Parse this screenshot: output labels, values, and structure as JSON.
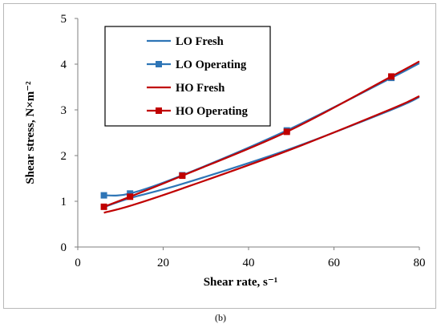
{
  "chart_data": {
    "type": "line",
    "xlabel": "Shear rate, s⁻¹",
    "ylabel": "Shear stress, N×m⁻²",
    "xlim": [
      0,
      80
    ],
    "ylim": [
      0,
      5
    ],
    "x_ticks": [
      0,
      20,
      40,
      60,
      80
    ],
    "y_ticks": [
      0,
      1,
      2,
      3,
      4,
      5
    ],
    "grid": false,
    "legend_position": "top-left",
    "series": [
      {
        "name": "LO Fresh",
        "color": "#2e75b6",
        "marker": "none",
        "x": [
          6.12,
          12.24,
          24.48,
          48.96,
          73.44,
          80
        ],
        "y": [
          0.87,
          1.07,
          1.38,
          2.12,
          3.0,
          3.28
        ]
      },
      {
        "name": "LO Operating",
        "color": "#2e75b6",
        "marker": "square",
        "x": [
          6.12,
          12.24,
          24.48,
          48.96,
          73.44,
          80
        ],
        "y": [
          1.13,
          1.17,
          1.57,
          2.55,
          3.7,
          4.02
        ]
      },
      {
        "name": "HO Fresh",
        "color": "#c00000",
        "marker": "none",
        "x": [
          6.12,
          12.24,
          24.48,
          48.96,
          73.44,
          80
        ],
        "y": [
          0.75,
          0.9,
          1.28,
          2.1,
          3.02,
          3.3
        ]
      },
      {
        "name": "HO Operating",
        "color": "#c00000",
        "marker": "square",
        "x": [
          6.12,
          12.24,
          24.48,
          48.96,
          73.44,
          80
        ],
        "y": [
          0.88,
          1.1,
          1.56,
          2.52,
          3.73,
          4.06
        ]
      }
    ],
    "caption": "(b)"
  }
}
